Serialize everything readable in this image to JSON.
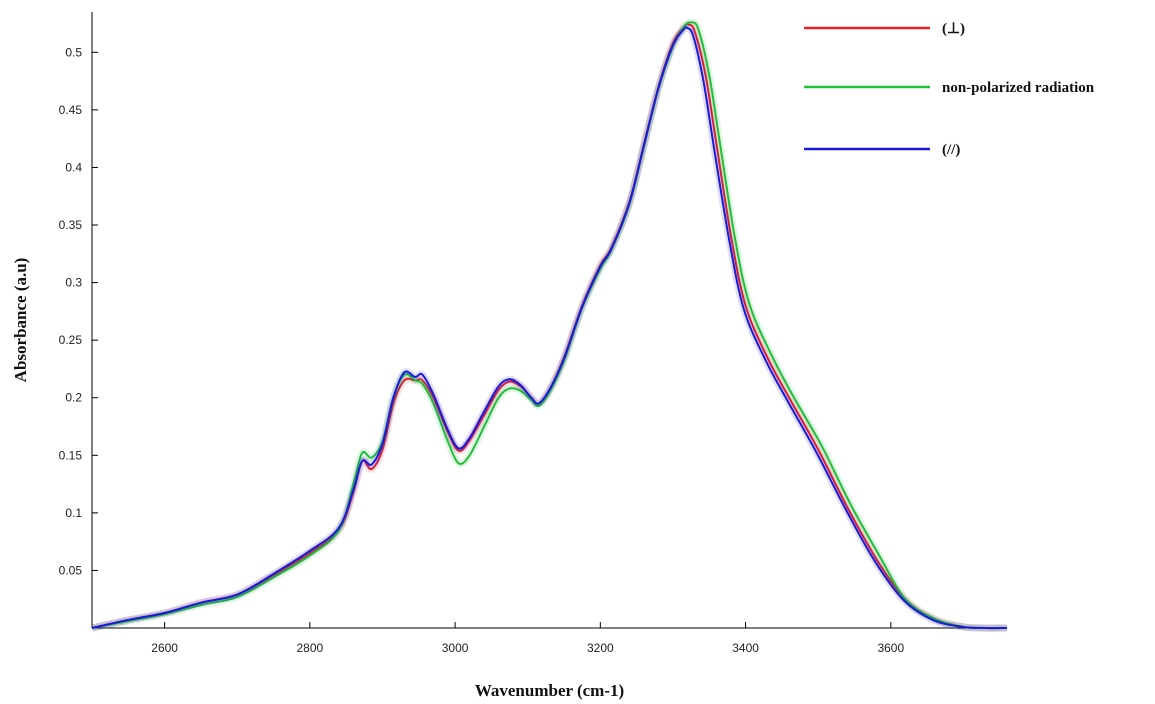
{
  "chart_data": {
    "type": "line",
    "title": "",
    "xlabel": "Wavenumber  (cm-1)",
    "ylabel": "Absorbance  (a.u)",
    "xlim": [
      2500,
      3760
    ],
    "ylim": [
      0,
      0.535
    ],
    "x_ticks": [
      2600,
      2800,
      3000,
      3200,
      3400,
      3600
    ],
    "y_ticks": [
      0.05,
      0.1,
      0.15,
      0.2,
      0.25,
      0.3,
      0.35,
      0.4,
      0.45,
      0.5
    ],
    "grid": false,
    "legend_position": "top-right",
    "series": [
      {
        "name": "(⊥)",
        "color": "#e8202a",
        "x": [
          2500,
          2550,
          2600,
          2650,
          2700,
          2750,
          2800,
          2840,
          2860,
          2872,
          2885,
          2900,
          2915,
          2930,
          2945,
          2955,
          2970,
          2990,
          3005,
          3020,
          3040,
          3060,
          3075,
          3090,
          3105,
          3115,
          3130,
          3150,
          3175,
          3200,
          3215,
          3240,
          3260,
          3280,
          3300,
          3315,
          3322,
          3330,
          3345,
          3360,
          3380,
          3400,
          3430,
          3460,
          3500,
          3540,
          3580,
          3620,
          3660,
          3700,
          3730,
          3760
        ],
        "y": [
          0.0,
          0.007,
          0.013,
          0.022,
          0.029,
          0.046,
          0.065,
          0.085,
          0.118,
          0.145,
          0.138,
          0.155,
          0.195,
          0.215,
          0.215,
          0.215,
          0.2,
          0.17,
          0.154,
          0.163,
          0.185,
          0.207,
          0.214,
          0.21,
          0.2,
          0.195,
          0.207,
          0.235,
          0.28,
          0.315,
          0.33,
          0.37,
          0.42,
          0.47,
          0.508,
          0.522,
          0.524,
          0.518,
          0.48,
          0.42,
          0.34,
          0.28,
          0.235,
          0.2,
          0.155,
          0.105,
          0.06,
          0.025,
          0.008,
          0.001,
          0.0,
          0.0
        ]
      },
      {
        "name": "non-polarized  radiation",
        "color": "#1fbf3c",
        "x": [
          2500,
          2550,
          2600,
          2650,
          2700,
          2750,
          2800,
          2840,
          2860,
          2872,
          2885,
          2900,
          2915,
          2930,
          2945,
          2955,
          2970,
          2990,
          3005,
          3020,
          3040,
          3060,
          3075,
          3090,
          3105,
          3115,
          3130,
          3150,
          3175,
          3200,
          3215,
          3240,
          3260,
          3280,
          3300,
          3315,
          3325,
          3335,
          3350,
          3365,
          3385,
          3405,
          3435,
          3465,
          3505,
          3545,
          3585,
          3620,
          3660,
          3700,
          3730,
          3760
        ],
        "y": [
          0.0,
          0.006,
          0.012,
          0.02,
          0.027,
          0.044,
          0.063,
          0.085,
          0.125,
          0.152,
          0.148,
          0.162,
          0.2,
          0.22,
          0.215,
          0.212,
          0.195,
          0.162,
          0.143,
          0.15,
          0.175,
          0.2,
          0.208,
          0.206,
          0.198,
          0.193,
          0.205,
          0.232,
          0.278,
          0.312,
          0.328,
          0.368,
          0.418,
          0.468,
          0.505,
          0.522,
          0.526,
          0.52,
          0.48,
          0.42,
          0.34,
          0.282,
          0.238,
          0.202,
          0.158,
          0.107,
          0.062,
          0.025,
          0.008,
          0.001,
          0.0,
          0.0
        ]
      },
      {
        "name": "(//)",
        "color": "#1a1adb",
        "x": [
          2500,
          2550,
          2600,
          2650,
          2700,
          2750,
          2800,
          2840,
          2860,
          2872,
          2885,
          2900,
          2915,
          2930,
          2945,
          2955,
          2970,
          2990,
          3005,
          3020,
          3040,
          3060,
          3075,
          3090,
          3105,
          3115,
          3130,
          3150,
          3175,
          3200,
          3215,
          3240,
          3260,
          3280,
          3300,
          3315,
          3320,
          3328,
          3342,
          3357,
          3378,
          3398,
          3428,
          3458,
          3498,
          3538,
          3578,
          3618,
          3658,
          3698,
          3730,
          3760
        ],
        "y": [
          0.0,
          0.007,
          0.013,
          0.022,
          0.029,
          0.047,
          0.067,
          0.087,
          0.12,
          0.145,
          0.142,
          0.16,
          0.2,
          0.222,
          0.218,
          0.22,
          0.203,
          0.172,
          0.156,
          0.165,
          0.188,
          0.21,
          0.216,
          0.211,
          0.2,
          0.195,
          0.207,
          0.234,
          0.279,
          0.314,
          0.329,
          0.369,
          0.419,
          0.469,
          0.506,
          0.52,
          0.521,
          0.514,
          0.475,
          0.415,
          0.335,
          0.276,
          0.232,
          0.197,
          0.152,
          0.103,
          0.058,
          0.024,
          0.007,
          0.001,
          0.0,
          0.0
        ]
      }
    ]
  }
}
